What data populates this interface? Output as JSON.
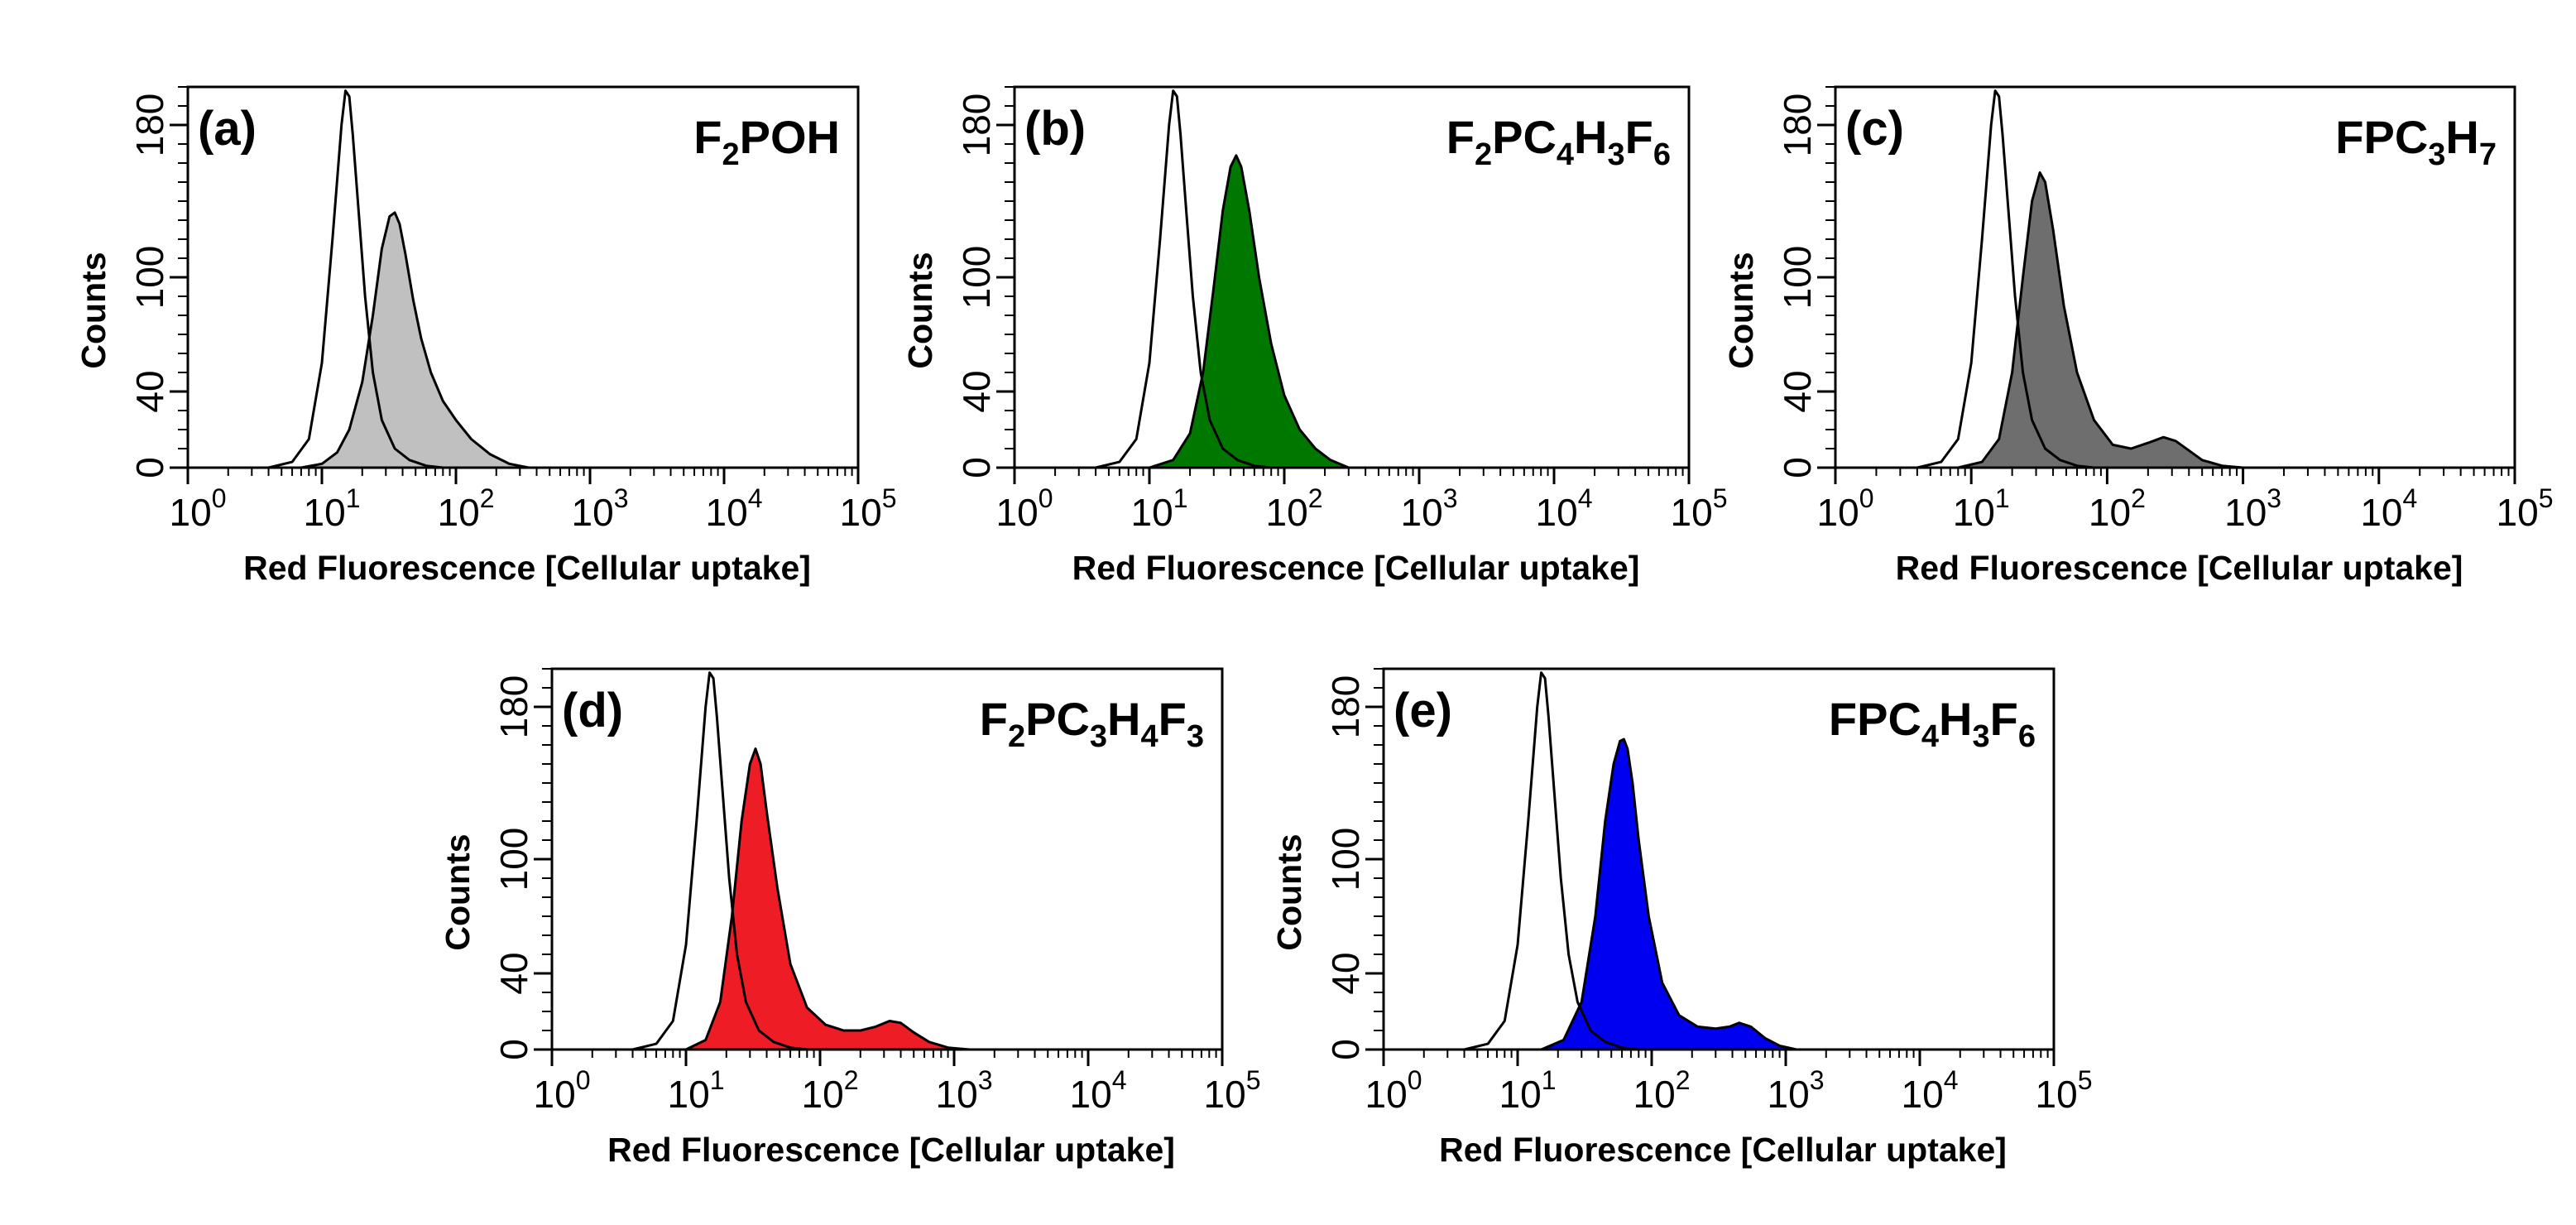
{
  "chart_data": [
    {
      "type": "area",
      "panel": "(a)",
      "compound": [
        {
          "t": "F",
          "s": "2"
        },
        {
          "t": "POH",
          "s": ""
        }
      ],
      "fill_color": "#c0c0c0",
      "xscale": "log",
      "xlim": [
        1,
        100000
      ],
      "xticks": [
        {
          "base": "10",
          "exp": "0"
        },
        {
          "base": "10",
          "exp": "1"
        },
        {
          "base": "10",
          "exp": "2"
        },
        {
          "base": "10",
          "exp": "3"
        },
        {
          "base": "10",
          "exp": "4"
        },
        {
          "base": "10",
          "exp": "5"
        }
      ],
      "ylim": [
        0,
        200
      ],
      "yticks": [
        "0",
        "40",
        "100",
        "180"
      ],
      "xlabel": "Red Fluorescence [Cellular uptake]",
      "ylabel": "Counts",
      "series": [
        {
          "role": "control",
          "x": [
            1,
            4,
            6,
            8,
            10,
            12,
            14,
            15,
            16,
            17,
            19,
            21,
            24,
            28,
            35,
            45,
            60,
            80,
            100000
          ],
          "y": [
            0,
            0,
            3,
            15,
            55,
            120,
            180,
            198,
            195,
            175,
            130,
            90,
            50,
            25,
            10,
            4,
            1,
            0,
            0
          ]
        },
        {
          "role": "sample",
          "x": [
            1,
            7,
            10,
            13,
            16,
            20,
            24,
            28,
            32,
            35,
            38,
            42,
            48,
            55,
            65,
            80,
            100,
            130,
            180,
            250,
            350,
            100000
          ],
          "y": [
            0,
            0,
            2,
            8,
            20,
            45,
            80,
            115,
            132,
            134,
            128,
            112,
            88,
            68,
            50,
            35,
            25,
            15,
            7,
            2,
            0,
            0
          ]
        }
      ]
    },
    {
      "type": "area",
      "panel": "(b)",
      "compound": [
        {
          "t": "F",
          "s": "2"
        },
        {
          "t": "PC",
          "s": "4"
        },
        {
          "t": "H",
          "s": "3"
        },
        {
          "t": "F",
          "s": "6"
        }
      ],
      "fill_color": "#007800",
      "xscale": "log",
      "xlim": [
        1,
        100000
      ],
      "xticks": [
        {
          "base": "10",
          "exp": "0"
        },
        {
          "base": "10",
          "exp": "1"
        },
        {
          "base": "10",
          "exp": "2"
        },
        {
          "base": "10",
          "exp": "3"
        },
        {
          "base": "10",
          "exp": "4"
        },
        {
          "base": "10",
          "exp": "5"
        }
      ],
      "ylim": [
        0,
        200
      ],
      "yticks": [
        "0",
        "40",
        "100",
        "180"
      ],
      "xlabel": "Red Fluorescence [Cellular uptake]",
      "ylabel": "Counts",
      "series": [
        {
          "role": "control",
          "x": [
            1,
            4,
            6,
            8,
            10,
            12,
            14,
            15,
            16,
            17,
            19,
            21,
            24,
            28,
            35,
            45,
            60,
            80,
            100000
          ],
          "y": [
            0,
            0,
            3,
            15,
            55,
            120,
            180,
            198,
            195,
            175,
            130,
            90,
            50,
            25,
            10,
            4,
            1,
            0,
            0
          ]
        },
        {
          "role": "sample",
          "x": [
            1,
            10,
            15,
            20,
            25,
            30,
            35,
            40,
            44,
            48,
            55,
            65,
            80,
            100,
            130,
            170,
            220,
            300,
            100000
          ],
          "y": [
            0,
            0,
            4,
            18,
            50,
            95,
            135,
            158,
            164,
            158,
            135,
            100,
            65,
            38,
            20,
            10,
            4,
            0,
            0
          ]
        }
      ]
    },
    {
      "type": "area",
      "panel": "(c)",
      "compound": [
        {
          "t": "FPC",
          "s": "3"
        },
        {
          "t": "H",
          "s": "7"
        }
      ],
      "fill_color": "#6e6e6e",
      "xscale": "log",
      "xlim": [
        1,
        100000
      ],
      "xticks": [
        {
          "base": "10",
          "exp": "0"
        },
        {
          "base": "10",
          "exp": "1"
        },
        {
          "base": "10",
          "exp": "2"
        },
        {
          "base": "10",
          "exp": "3"
        },
        {
          "base": "10",
          "exp": "4"
        },
        {
          "base": "10",
          "exp": "5"
        }
      ],
      "ylim": [
        0,
        200
      ],
      "yticks": [
        "0",
        "40",
        "100",
        "180"
      ],
      "xlabel": "Red Fluorescence [Cellular uptake]",
      "ylabel": "Counts",
      "series": [
        {
          "role": "control",
          "x": [
            1,
            4,
            6,
            8,
            10,
            12,
            14,
            15,
            16,
            17,
            19,
            21,
            24,
            28,
            35,
            45,
            60,
            80,
            100000
          ],
          "y": [
            0,
            0,
            3,
            15,
            55,
            120,
            180,
            198,
            195,
            175,
            130,
            90,
            50,
            25,
            10,
            4,
            1,
            0,
            0
          ]
        },
        {
          "role": "sample",
          "x": [
            1,
            8,
            12,
            16,
            20,
            24,
            28,
            32,
            35,
            40,
            48,
            60,
            80,
            110,
            150,
            200,
            260,
            320,
            400,
            500,
            700,
            1000,
            100000
          ],
          "y": [
            0,
            0,
            3,
            15,
            50,
            100,
            140,
            155,
            150,
            125,
            85,
            50,
            25,
            12,
            10,
            13,
            16,
            14,
            9,
            4,
            1,
            0,
            0
          ]
        }
      ]
    },
    {
      "type": "area",
      "panel": "(d)",
      "compound": [
        {
          "t": "F",
          "s": "2"
        },
        {
          "t": "PC",
          "s": "3"
        },
        {
          "t": "H",
          "s": "4"
        },
        {
          "t": "F",
          "s": "3"
        }
      ],
      "fill_color": "#ee1c25",
      "xscale": "log",
      "xlim": [
        1,
        100000
      ],
      "xticks": [
        {
          "base": "10",
          "exp": "0"
        },
        {
          "base": "10",
          "exp": "1"
        },
        {
          "base": "10",
          "exp": "2"
        },
        {
          "base": "10",
          "exp": "3"
        },
        {
          "base": "10",
          "exp": "4"
        },
        {
          "base": "10",
          "exp": "5"
        }
      ],
      "ylim": [
        0,
        200
      ],
      "yticks": [
        "0",
        "40",
        "100",
        "180"
      ],
      "xlabel": "Red Fluorescence [Cellular uptake]",
      "ylabel": "Counts",
      "series": [
        {
          "role": "control",
          "x": [
            1,
            4,
            6,
            8,
            10,
            12,
            14,
            15,
            16,
            17,
            19,
            21,
            24,
            28,
            35,
            45,
            60,
            80,
            100000
          ],
          "y": [
            0,
            0,
            3,
            15,
            55,
            120,
            180,
            198,
            195,
            175,
            130,
            90,
            50,
            25,
            10,
            4,
            1,
            0,
            0
          ]
        },
        {
          "role": "sample",
          "x": [
            1,
            10,
            14,
            18,
            22,
            26,
            30,
            33,
            36,
            40,
            48,
            60,
            80,
            110,
            150,
            200,
            260,
            330,
            400,
            500,
            650,
            900,
            1300,
            100000
          ],
          "y": [
            0,
            0,
            5,
            25,
            70,
            120,
            150,
            158,
            150,
            125,
            85,
            45,
            22,
            13,
            10,
            10,
            12,
            15,
            14,
            9,
            4,
            1,
            0,
            0
          ]
        }
      ]
    },
    {
      "type": "area",
      "panel": "(e)",
      "compound": [
        {
          "t": "FPC",
          "s": "4"
        },
        {
          "t": "H",
          "s": "3"
        },
        {
          "t": "F",
          "s": "6"
        }
      ],
      "fill_color": "#0000f0",
      "xscale": "log",
      "xlim": [
        1,
        100000
      ],
      "xticks": [
        {
          "base": "10",
          "exp": "0"
        },
        {
          "base": "10",
          "exp": "1"
        },
        {
          "base": "10",
          "exp": "2"
        },
        {
          "base": "10",
          "exp": "3"
        },
        {
          "base": "10",
          "exp": "4"
        },
        {
          "base": "10",
          "exp": "5"
        }
      ],
      "ylim": [
        0,
        200
      ],
      "yticks": [
        "0",
        "40",
        "100",
        "180"
      ],
      "xlabel": "Red Fluorescence [Cellular uptake]",
      "ylabel": "Counts",
      "series": [
        {
          "role": "control",
          "x": [
            1,
            4,
            6,
            8,
            10,
            12,
            14,
            15,
            16,
            17,
            19,
            21,
            24,
            28,
            35,
            45,
            60,
            80,
            100000
          ],
          "y": [
            0,
            0,
            3,
            15,
            55,
            120,
            180,
            198,
            195,
            175,
            130,
            90,
            50,
            25,
            10,
            4,
            1,
            0,
            0
          ]
        },
        {
          "role": "sample",
          "x": [
            1,
            15,
            22,
            30,
            38,
            45,
            52,
            58,
            62,
            66,
            72,
            80,
            95,
            120,
            160,
            220,
            300,
            380,
            450,
            550,
            700,
            900,
            1200,
            100000
          ],
          "y": [
            0,
            0,
            5,
            25,
            70,
            120,
            150,
            162,
            163,
            158,
            140,
            110,
            70,
            35,
            18,
            12,
            11,
            12,
            14,
            12,
            6,
            2,
            0,
            0
          ]
        }
      ]
    }
  ]
}
